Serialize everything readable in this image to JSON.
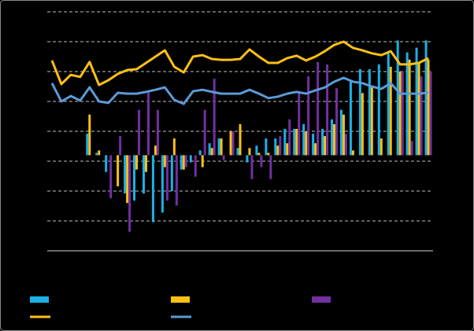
{
  "chart_data": {
    "type": "bar",
    "grid": true,
    "categories": [
      null,
      null,
      null,
      null,
      null,
      null,
      null,
      null,
      null,
      null,
      null,
      null,
      null,
      null,
      null,
      null,
      null,
      null,
      null,
      null,
      null,
      null,
      null,
      null,
      null,
      null,
      null,
      null,
      null,
      null,
      null,
      null,
      null,
      null,
      null,
      null,
      null,
      null,
      null,
      null,
      null
    ],
    "ylim": [
      0,
      8
    ],
    "yticks": [
      0,
      1,
      2,
      3,
      4,
      5,
      6,
      7,
      8
    ],
    "y2lim": [
      -4,
      6
    ],
    "series": [
      {
        "type": "bar",
        "axis": "y2",
        "color": "#1cb0e6",
        "values": [
          null,
          null,
          null,
          null,
          0.9,
          0.1,
          -0.7,
          0,
          -1.6,
          -1.9,
          -1.6,
          -2.8,
          -2.4,
          -1.5,
          -0.6,
          -0.3,
          0.2,
          0.5,
          0.7,
          0,
          0.3,
          -0.3,
          0.4,
          0.7,
          0.7,
          1.1,
          1.1,
          1.3,
          0.9,
          1.1,
          1.5,
          1.9,
          3.1,
          3.6,
          3.6,
          3.8,
          4.3,
          4.8,
          4.3,
          4.5,
          4.8
        ]
      },
      {
        "type": "bar",
        "axis": "y2",
        "color": "#fcc016",
        "values": [
          null,
          null,
          null,
          null,
          1.7,
          0.2,
          0,
          -1.3,
          -2.0,
          -0.6,
          -0.7,
          0.4,
          -0.5,
          0.7,
          -0.6,
          0,
          -0.5,
          0.3,
          0.7,
          1.0,
          1.3,
          0.3,
          0.1,
          0.1,
          0.4,
          0.5,
          1.1,
          1.0,
          0.5,
          0.8,
          1.3,
          1.7,
          0.2,
          2.6,
          2.9,
          0.7,
          3.7,
          3.5,
          4.0,
          3.9,
          4.0
        ]
      },
      {
        "type": "bar",
        "axis": "y2",
        "color": "#7030a0",
        "values": [
          null,
          null,
          null,
          null,
          0,
          0,
          -1.8,
          0.8,
          -3.2,
          1.9,
          2.7,
          1.9,
          -1.9,
          -2.1,
          -0.5,
          -0.9,
          1.9,
          3.2,
          -0.2,
          1.0,
          0,
          -1.0,
          -0.5,
          -1.0,
          0.8,
          1.5,
          2.6,
          3.3,
          3.9,
          3.8,
          2.8,
          0.9,
          0,
          0,
          0,
          0,
          0,
          3.5,
          0.6,
          3.3,
          3.5
        ]
      },
      {
        "type": "line",
        "color": "#fcc016",
        "values": [
          6.37,
          5.58,
          5.89,
          5.82,
          6.32,
          5.55,
          5.71,
          5.92,
          6.05,
          6.08,
          6.29,
          6.5,
          6.71,
          6.16,
          5.97,
          6.5,
          6.55,
          6.42,
          6.39,
          6.39,
          6.42,
          6.74,
          6.5,
          6.29,
          6.29,
          6.45,
          6.53,
          6.37,
          6.5,
          6.68,
          6.89,
          7.0,
          6.79,
          6.71,
          6.61,
          6.55,
          6.68,
          6.24,
          6.24,
          6.29,
          6.45
        ]
      },
      {
        "type": "line",
        "color": "#5b9bd5",
        "values": [
          5.61,
          5.0,
          5.18,
          5.03,
          5.47,
          5.0,
          4.95,
          5.29,
          5.26,
          5.26,
          5.32,
          5.39,
          5.47,
          5.05,
          4.92,
          5.34,
          5.39,
          5.32,
          5.26,
          5.26,
          5.26,
          5.39,
          5.26,
          5.11,
          5.16,
          5.26,
          5.32,
          5.26,
          5.37,
          5.47,
          5.66,
          5.79,
          5.66,
          5.61,
          5.5,
          5.42,
          5.61,
          5.26,
          5.26,
          5.26,
          5.29
        ]
      }
    ]
  }
}
